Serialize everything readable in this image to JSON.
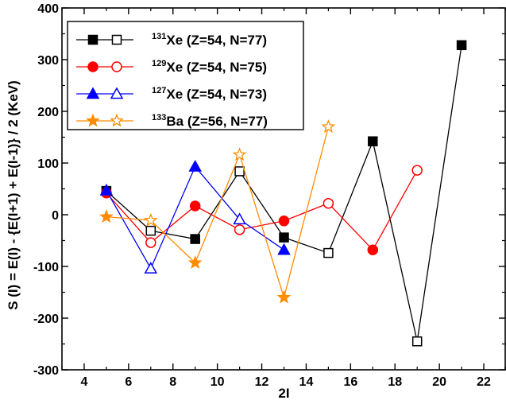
{
  "chart_data": {
    "type": "line",
    "xlabel": "2I",
    "ylabel": "S (I) = E(I) - {E(I+1) + E(I-1)} / 2   (KeV)",
    "xlim": [
      3,
      23
    ],
    "ylim": [
      -300,
      400
    ],
    "xticks": [
      4,
      6,
      8,
      10,
      12,
      14,
      16,
      18,
      20,
      22
    ],
    "yticks": [
      -300,
      -200,
      -100,
      0,
      100,
      200,
      300,
      400
    ],
    "legend_position": "top-left",
    "series": [
      {
        "name": "131Xe (Z=54, N=77)",
        "name_sup": "131",
        "name_main": "Xe (Z=54, N=77)",
        "color": "#000000",
        "marker": "square",
        "points": [
          {
            "x": 5,
            "y": 46,
            "filled": true
          },
          {
            "x": 7,
            "y": -31,
            "filled": false
          },
          {
            "x": 9,
            "y": -47,
            "filled": true
          },
          {
            "x": 11,
            "y": 84,
            "filled": false
          },
          {
            "x": 13,
            "y": -44,
            "filled": true
          },
          {
            "x": 15,
            "y": -74,
            "filled": false
          },
          {
            "x": 17,
            "y": 142,
            "filled": true
          },
          {
            "x": 19,
            "y": -245,
            "filled": false
          },
          {
            "x": 21,
            "y": 328,
            "filled": true
          }
        ]
      },
      {
        "name": "129Xe (Z=54, N=75)",
        "name_sup": "129",
        "name_main": "Xe (Z=54, N=75)",
        "color": "#ff0000",
        "marker": "circle",
        "points": [
          {
            "x": 5,
            "y": 42,
            "filled": true
          },
          {
            "x": 7,
            "y": -54,
            "filled": false
          },
          {
            "x": 9,
            "y": 17,
            "filled": true
          },
          {
            "x": 11,
            "y": -29,
            "filled": false
          },
          {
            "x": 13,
            "y": -12,
            "filled": true
          },
          {
            "x": 15,
            "y": 22,
            "filled": false
          },
          {
            "x": 17,
            "y": -68,
            "filled": true
          },
          {
            "x": 19,
            "y": 86,
            "filled": false
          }
        ]
      },
      {
        "name": "127Xe (Z=54, N=73)",
        "name_sup": "127",
        "name_main": "Xe (Z=54, N=73)",
        "color": "#0000ff",
        "marker": "triangle",
        "points": [
          {
            "x": 5,
            "y": 47,
            "filled": true
          },
          {
            "x": 7,
            "y": -104,
            "filled": false
          },
          {
            "x": 9,
            "y": 93,
            "filled": true
          },
          {
            "x": 11,
            "y": -9,
            "filled": false
          },
          {
            "x": 13,
            "y": -68,
            "filled": true
          }
        ]
      },
      {
        "name": "133Ba (Z=56, N=77)",
        "name_sup": "133",
        "name_main": "Ba (Z=56, N=77)",
        "color": "#ff8c00",
        "marker": "star",
        "points": [
          {
            "x": 5,
            "y": -4,
            "filled": true
          },
          {
            "x": 7,
            "y": -11,
            "filled": false
          },
          {
            "x": 9,
            "y": -93,
            "filled": true
          },
          {
            "x": 11,
            "y": 116,
            "filled": false
          },
          {
            "x": 13,
            "y": -160,
            "filled": true
          },
          {
            "x": 15,
            "y": 170,
            "filled": false
          }
        ]
      }
    ]
  }
}
